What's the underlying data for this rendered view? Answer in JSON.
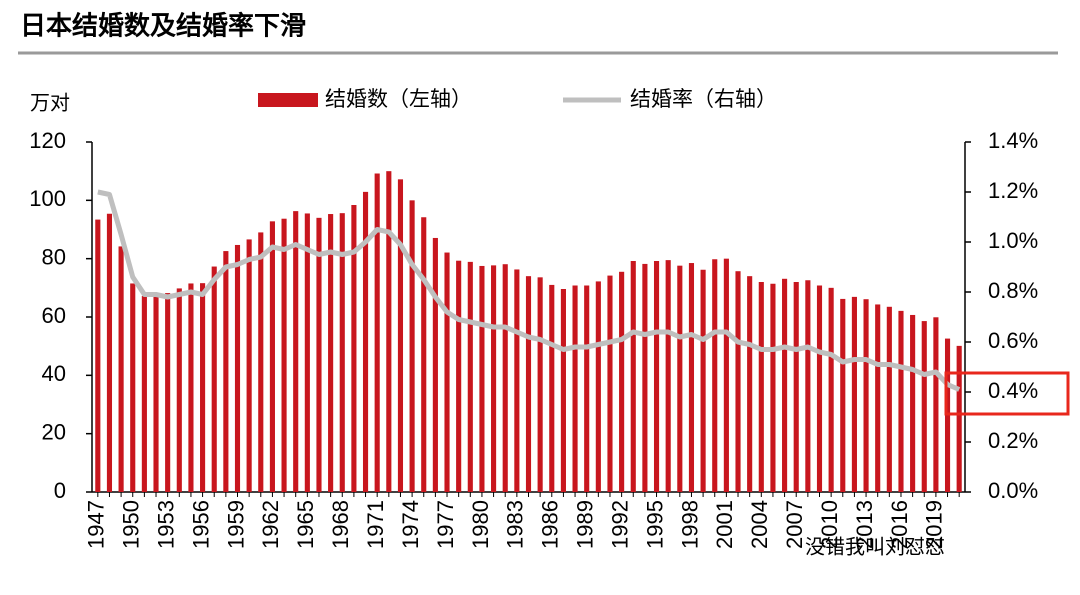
{
  "chart_data": {
    "type": "bar-line",
    "title": "日本结婚数及结婚率下滑",
    "y_label": "万对",
    "watermark": "没错我叫刘怼怼",
    "categories": [
      "1947",
      null,
      null,
      "1950",
      null,
      null,
      "1953",
      null,
      null,
      "1956",
      null,
      null,
      "1959",
      null,
      null,
      "1962",
      null,
      null,
      "1965",
      null,
      null,
      "1968",
      null,
      null,
      "1971",
      null,
      null,
      "1974",
      null,
      null,
      "1977",
      null,
      null,
      "1980",
      null,
      null,
      "1983",
      null,
      null,
      "1986",
      null,
      null,
      "1989",
      null,
      null,
      "1992",
      null,
      null,
      "1995",
      null,
      null,
      "1998",
      null,
      null,
      "2001",
      null,
      null,
      "2004",
      null,
      null,
      "2007",
      null,
      null,
      "2010",
      null,
      null,
      "2013",
      null,
      null,
      "2016",
      null,
      null,
      "2019",
      null,
      null
    ],
    "series": [
      {
        "name": "结婚数（左轴）",
        "type": "bar",
        "color": "#c8161e",
        "values": [
          93.4,
          95.4,
          84.2,
          71.5,
          67.2,
          67.6,
          68.2,
          69.8,
          71.5,
          71.6,
          77.3,
          82.6,
          84.7,
          86.6,
          89.0,
          92.8,
          93.7,
          96.3,
          95.5,
          94.0,
          95.3,
          95.6,
          98.4,
          102.9,
          109.2,
          110.0,
          107.2,
          100.0,
          94.2,
          87.1,
          82.1,
          79.3,
          78.9,
          77.5,
          77.7,
          78.1,
          76.3,
          74.0,
          73.6,
          71.0,
          69.6,
          70.8,
          70.8,
          72.2,
          74.2,
          75.5,
          79.2,
          78.2,
          79.2,
          79.5,
          77.6,
          78.5,
          76.2,
          79.8,
          80.0,
          75.7,
          74.0,
          72.0,
          71.4,
          73.1,
          72.0,
          72.6,
          70.8,
          70.0,
          66.2,
          66.9,
          66.1,
          64.3,
          63.5,
          62.1,
          60.7,
          58.6,
          59.9,
          52.6,
          50.1
        ]
      },
      {
        "name": "结婚率（右轴）",
        "type": "line",
        "axis": "y2",
        "color": "#bfbfbf",
        "values": [
          1.2,
          1.19,
          1.03,
          0.86,
          0.79,
          0.79,
          0.78,
          0.79,
          0.8,
          0.79,
          0.85,
          0.9,
          0.91,
          0.93,
          0.94,
          0.98,
          0.97,
          0.99,
          0.97,
          0.95,
          0.96,
          0.95,
          0.96,
          1.0,
          1.05,
          1.04,
          0.99,
          0.91,
          0.85,
          0.78,
          0.72,
          0.69,
          0.68,
          0.67,
          0.66,
          0.66,
          0.64,
          0.62,
          0.61,
          0.59,
          0.57,
          0.58,
          0.58,
          0.59,
          0.6,
          0.61,
          0.64,
          0.63,
          0.64,
          0.64,
          0.62,
          0.63,
          0.61,
          0.64,
          0.64,
          0.6,
          0.59,
          0.57,
          0.57,
          0.58,
          0.57,
          0.58,
          0.56,
          0.55,
          0.52,
          0.53,
          0.53,
          0.51,
          0.51,
          0.5,
          0.49,
          0.47,
          0.48,
          0.43,
          0.41
        ]
      }
    ],
    "ylim": [
      0,
      120
    ],
    "yticks": [
      0,
      20,
      40,
      60,
      80,
      100,
      120
    ],
    "y2lim": [
      0,
      1.4
    ],
    "y2ticks": [
      {
        "value": 0,
        "label": "0.0%"
      },
      {
        "value": 0.2,
        "label": "0.2%"
      },
      {
        "value": 0.4,
        "label": "0.4%"
      },
      {
        "value": 0.6,
        "label": "0.6%"
      },
      {
        "value": 0.8,
        "label": "0.8%"
      },
      {
        "value": 1.0,
        "label": "1.0%"
      },
      {
        "value": 1.2,
        "label": "1.2%"
      },
      {
        "value": 1.4,
        "label": "1.4%"
      }
    ],
    "grid": false
  }
}
